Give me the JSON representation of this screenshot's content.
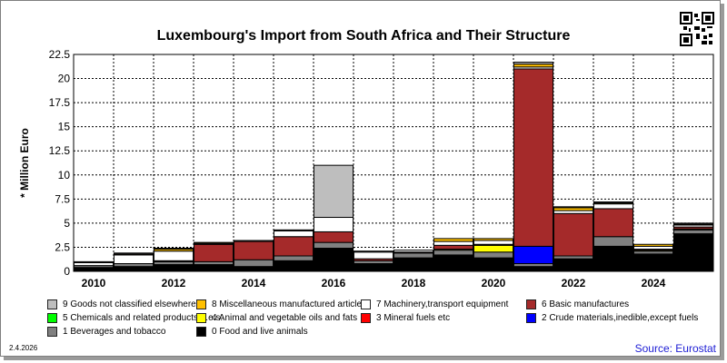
{
  "header": {
    "title": "Luxembourg's Import from South Africa and Their Structure"
  },
  "footer": {
    "date": "2.4.2026",
    "source": "Source: Eurostat"
  },
  "chart_data": {
    "type": "bar",
    "stacked": true,
    "title": "Luxembourg's Import from South Africa and Their Structure",
    "ylabel": "* Million Euro",
    "ylim": [
      0,
      22.5
    ],
    "yticks": [
      "0",
      "2.5",
      "5",
      "7.5",
      "10",
      "12.5",
      "15",
      "17.5",
      "20",
      "22.5"
    ],
    "xticks": [
      "2010",
      "2012",
      "2014",
      "2016",
      "2018",
      "2020",
      "2022",
      "2024"
    ],
    "grid": true,
    "legend_position": "bottom",
    "categories": [
      "2010",
      "2011",
      "2012",
      "2013",
      "2014",
      "2015",
      "2016",
      "2017",
      "2018",
      "2019",
      "2020",
      "2021",
      "2022",
      "2023",
      "2024",
      "2025"
    ],
    "series": [
      {
        "name": "0 Food and live animals",
        "color": "#000000",
        "values": [
          0.4,
          0.5,
          0.7,
          0.7,
          0.5,
          1.1,
          2.4,
          0.8,
          1.4,
          1.7,
          1.4,
          0.5,
          1.3,
          2.6,
          1.8,
          3.9
        ]
      },
      {
        "name": "1 Beverages and tobacco",
        "color": "#808080",
        "values": [
          0.2,
          0.3,
          0.3,
          0.3,
          0.7,
          0.5,
          0.6,
          0.3,
          0.5,
          0.5,
          0.6,
          0.3,
          0.3,
          1.0,
          0.3,
          0.4
        ]
      },
      {
        "name": "2 Crude materials,inedible,except fuels",
        "color": "#0000ff",
        "values": [
          0,
          0,
          0,
          0,
          0,
          0,
          0,
          0,
          0,
          0,
          0,
          1.8,
          0,
          0,
          0,
          0
        ]
      },
      {
        "name": "3 Mineral fuels etc",
        "color": "#ff0000",
        "values": [
          0,
          0,
          0,
          0,
          0,
          0,
          0,
          0,
          0,
          0,
          0,
          0,
          0,
          0,
          0,
          0
        ]
      },
      {
        "name": "4 Animal and vegetable oils and fats",
        "color": "#ffff00",
        "values": [
          0,
          0,
          0,
          0,
          0,
          0,
          0,
          0,
          0,
          0.1,
          0.7,
          0,
          0,
          0,
          0.1,
          0.1
        ]
      },
      {
        "name": "5 Chemicals and related products,n.e.s.",
        "color": "#00ff00",
        "values": [
          0,
          0,
          0,
          0,
          0,
          0,
          0,
          0,
          0,
          0,
          0,
          0,
          0,
          0,
          0,
          0
        ]
      },
      {
        "name": "6 Basic manufactures",
        "color": "#a52a2a",
        "values": [
          0,
          0,
          0.1,
          1.8,
          1.9,
          2.0,
          1.1,
          0.2,
          0.1,
          0.4,
          0.1,
          18.4,
          4.4,
          2.9,
          0.1,
          0.2
        ]
      },
      {
        "name": "7 Machinery,transport equipment",
        "color": "#ffffff",
        "values": [
          0.3,
          0.9,
          1.0,
          0.1,
          0.1,
          0.6,
          1.5,
          0.7,
          0.2,
          0.4,
          0.4,
          0.2,
          0.3,
          0.5,
          0.3,
          0.2
        ]
      },
      {
        "name": "8 Miscellaneous manufactured articles",
        "color": "#ffc000",
        "values": [
          0,
          0.1,
          0.2,
          0.1,
          0,
          0,
          0,
          0,
          0,
          0.3,
          0.2,
          0.3,
          0.3,
          0.1,
          0.2,
          0.1
        ]
      },
      {
        "name": "9 Goods not classified elsewhere",
        "color": "#bebebe",
        "values": [
          0.1,
          0.1,
          0.1,
          0,
          0,
          0.1,
          5.4,
          0.1,
          0,
          0,
          0,
          0.2,
          0.1,
          0.1,
          0,
          0.1
        ]
      }
    ],
    "legend_rows": [
      [
        "9 Goods not classified elsewhere",
        "8 Miscellaneous manufactured articles",
        "7 Machinery,transport equipment",
        "6 Basic manufactures"
      ],
      [
        "5 Chemicals and related products,n.e.s.",
        "4 Animal and vegetable oils and fats",
        "3 Mineral fuels etc",
        "2 Crude materials,inedible,except fuels"
      ],
      [
        "1 Beverages and tobacco",
        "0 Food and live animals"
      ]
    ]
  }
}
